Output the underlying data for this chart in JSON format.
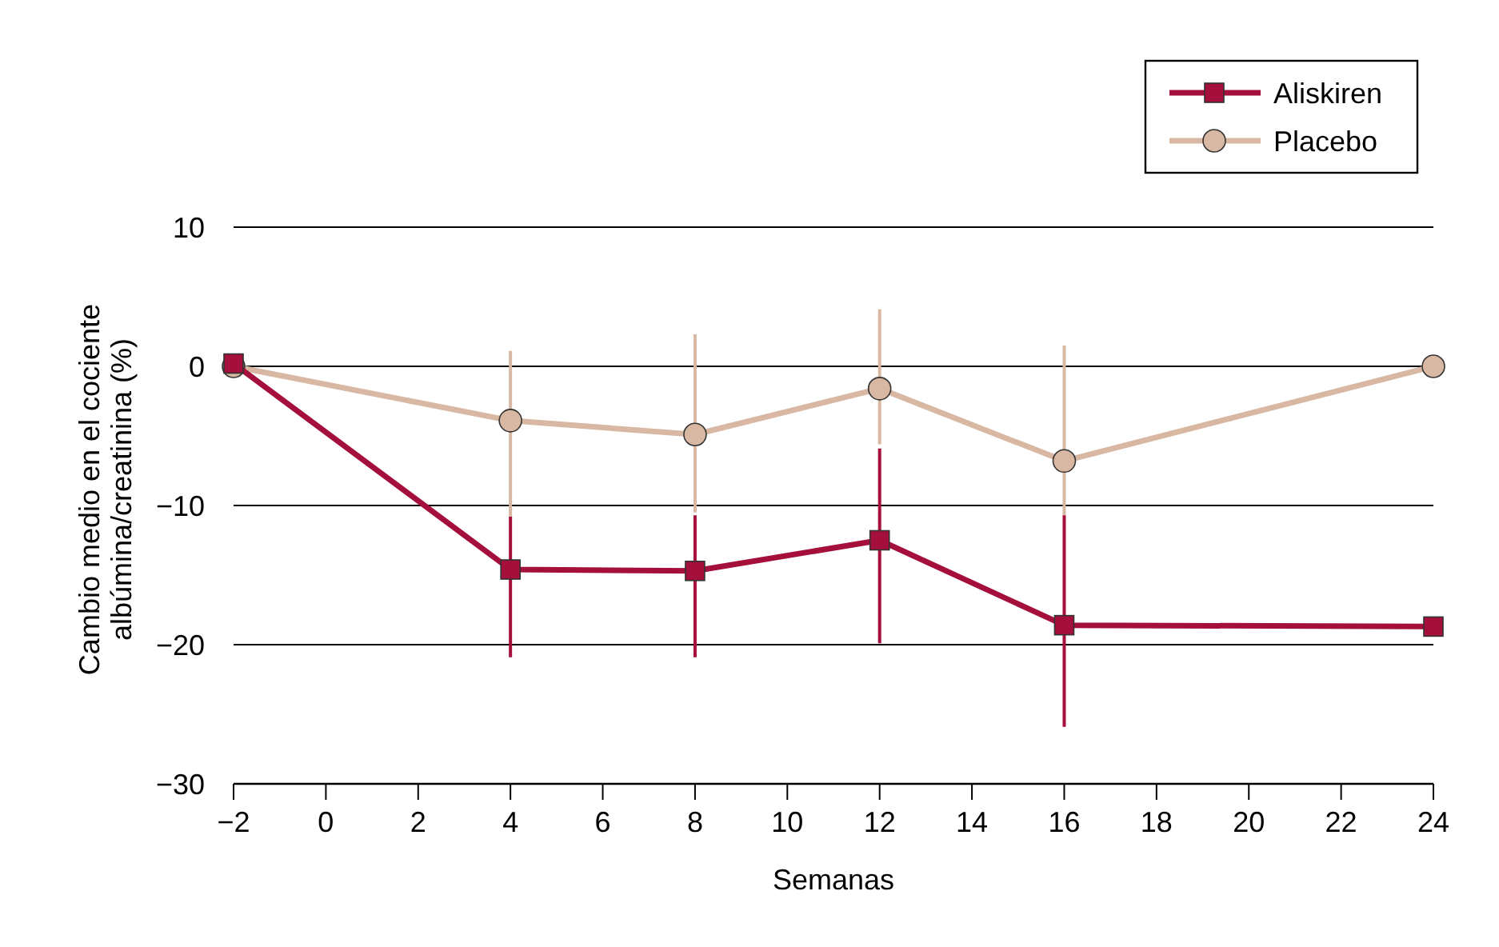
{
  "chart_data": {
    "type": "line",
    "xlabel": "Semanas",
    "ylabel": "Cambio medio en el cociente albúmina/creatinina (%)",
    "xlim": [
      -2,
      24
    ],
    "ylim": [
      -30,
      10
    ],
    "xticks": [
      {
        "value": -2,
        "label": "−2"
      },
      0,
      2,
      4,
      6,
      8,
      10,
      12,
      14,
      16,
      18,
      20,
      22,
      24
    ],
    "yticks": [
      {
        "value": -30,
        "label": "−30"
      },
      {
        "value": -20,
        "label": "−20"
      },
      {
        "value": -10,
        "label": "−10"
      },
      0,
      10
    ],
    "grid": "y",
    "legend": "top right",
    "line_style": "solid",
    "series": [
      {
        "name": "Aliskiren",
        "color": "#a50f3c",
        "marker": "square",
        "x": [
          -2,
          4,
          8,
          12,
          16,
          24
        ],
        "values": [
          0.2,
          -14.6,
          -14.7,
          -12.5,
          -18.6,
          -18.7
        ],
        "errors": [
          null,
          [
            -20.9,
            -10.8
          ],
          [
            -20.9,
            -10.7
          ],
          [
            -19.9,
            -5.9
          ],
          [
            -25.9,
            -10.7
          ],
          null
        ]
      },
      {
        "name": "Placebo",
        "color": "#d8b8a2",
        "marker": "circle",
        "x": [
          -2,
          4,
          8,
          12,
          16,
          24
        ],
        "values": [
          0,
          -3.9,
          -4.9,
          -1.6,
          -6.8,
          0
        ],
        "errors": [
          null,
          [
            -10.8,
            1.1
          ],
          [
            -10.5,
            2.3
          ],
          [
            -5.6,
            4.1
          ],
          [
            -10.7,
            1.5
          ],
          null
        ]
      }
    ]
  }
}
